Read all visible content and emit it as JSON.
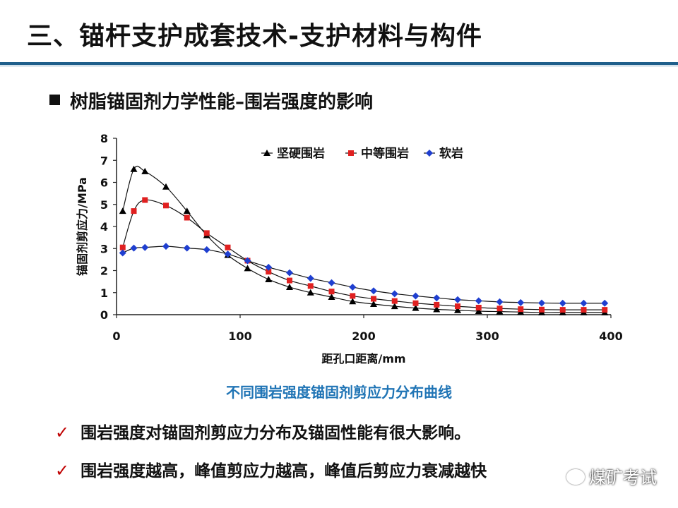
{
  "slide": {
    "title": "三、锚杆支护成套技术-支护材料与构件",
    "subtitle": "树脂锚固剂力学性能–围岩强度的影响",
    "caption": "不同围岩强度锚固剂剪应力分布曲线",
    "bullets": [
      "围岩强度对锚固剂剪应力分布及锚固性能有很大影响。",
      "围岩强度越高，峰值剪应力越高，峰值后剪应力衰减越快"
    ],
    "watermark": "煤矿考试"
  },
  "colors": {
    "rule": "#1f5f8b",
    "caption": "#1f74b5",
    "check": "#c00000"
  },
  "chart_data": {
    "type": "line",
    "xlabel": "距孔口距离/mm",
    "ylabel": "锚固剂剪应力/MPa",
    "xlim": [
      0,
      400
    ],
    "ylim": [
      0,
      8
    ],
    "xticks": [
      0,
      100,
      200,
      300,
      400
    ],
    "yticks": [
      0,
      1,
      2,
      3,
      4,
      5,
      6,
      7,
      8
    ],
    "legend_position": "top",
    "series": [
      {
        "name": "坚硬围岩",
        "marker": "triangle",
        "color": "#000000",
        "x": [
          5,
          14,
          23,
          40,
          57,
          73,
          90,
          106,
          123,
          140,
          157,
          174,
          191,
          208,
          225,
          242,
          259,
          276,
          293,
          310,
          327,
          344,
          361,
          378,
          395
        ],
        "y": [
          4.7,
          6.6,
          6.5,
          5.8,
          4.7,
          3.6,
          2.7,
          2.1,
          1.6,
          1.25,
          1.0,
          0.8,
          0.6,
          0.48,
          0.38,
          0.3,
          0.24,
          0.2,
          0.16,
          0.14,
          0.12,
          0.1,
          0.1,
          0.1,
          0.1
        ]
      },
      {
        "name": "中等围岩",
        "marker": "square",
        "color": "#e02020",
        "x": [
          5,
          14,
          23,
          40,
          57,
          73,
          90,
          106,
          123,
          140,
          157,
          174,
          191,
          208,
          225,
          242,
          259,
          276,
          293,
          310,
          327,
          344,
          361,
          378,
          395
        ],
        "y": [
          3.05,
          4.7,
          5.2,
          4.95,
          4.4,
          3.7,
          3.05,
          2.45,
          1.95,
          1.55,
          1.3,
          1.05,
          0.85,
          0.72,
          0.62,
          0.52,
          0.45,
          0.38,
          0.32,
          0.28,
          0.25,
          0.23,
          0.22,
          0.22,
          0.22
        ]
      },
      {
        "name": "软岩",
        "marker": "diamond",
        "color": "#1f3fd0",
        "x": [
          5,
          14,
          23,
          40,
          57,
          73,
          90,
          106,
          123,
          140,
          157,
          174,
          191,
          208,
          225,
          242,
          259,
          276,
          293,
          310,
          327,
          344,
          361,
          378,
          395
        ],
        "y": [
          2.8,
          3.02,
          3.05,
          3.1,
          3.02,
          2.95,
          2.75,
          2.45,
          2.15,
          1.9,
          1.65,
          1.45,
          1.25,
          1.08,
          0.95,
          0.85,
          0.76,
          0.68,
          0.63,
          0.58,
          0.55,
          0.53,
          0.52,
          0.52,
          0.52
        ]
      }
    ]
  }
}
